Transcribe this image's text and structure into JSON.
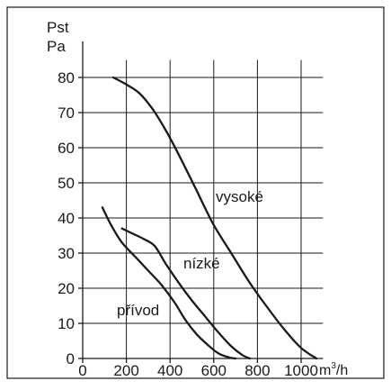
{
  "chart_data": {
    "type": "line",
    "ylabel_lines": [
      "Pst",
      "Pa"
    ],
    "xlabel_main": "m",
    "xlabel_sup": "3",
    "xlabel_tail": "/h",
    "xlim": [
      0,
      1100
    ],
    "ylim": [
      0,
      85
    ],
    "x_ticks": [
      0,
      200,
      400,
      600,
      800,
      1000
    ],
    "x_tick_labels": [
      "0",
      "200",
      "400",
      "600",
      "800",
      "1000"
    ],
    "y_ticks": [
      0,
      10,
      20,
      30,
      40,
      50,
      60,
      70,
      80
    ],
    "y_tick_labels": [
      "0",
      "10",
      "20",
      "30",
      "40",
      "50",
      "60",
      "70",
      "80"
    ],
    "grid": true,
    "series": [
      {
        "name": "vysoké",
        "x": [
          140,
          200,
          260,
          320,
          380,
          440,
          520,
          600,
          680,
          760,
          840,
          920,
          1000,
          1070
        ],
        "y": [
          80,
          78,
          75.5,
          71,
          65,
          58,
          48,
          38,
          30,
          22,
          15,
          8.5,
          3,
          0
        ]
      },
      {
        "name": "nízké",
        "x": [
          180,
          220,
          280,
          330,
          380,
          440,
          500,
          560,
          620,
          680,
          730,
          765
        ],
        "y": [
          37,
          35.8,
          34,
          32,
          27,
          21.5,
          16.5,
          12,
          7.5,
          3.5,
          1,
          0
        ]
      },
      {
        "name": "přívod",
        "x": [
          90,
          130,
          180,
          240,
          300,
          360,
          420,
          470,
          520,
          570,
          620,
          670,
          700
        ],
        "y": [
          43,
          38,
          33,
          29,
          25,
          21,
          16,
          11,
          7,
          4,
          1.5,
          0.3,
          0
        ]
      }
    ]
  }
}
